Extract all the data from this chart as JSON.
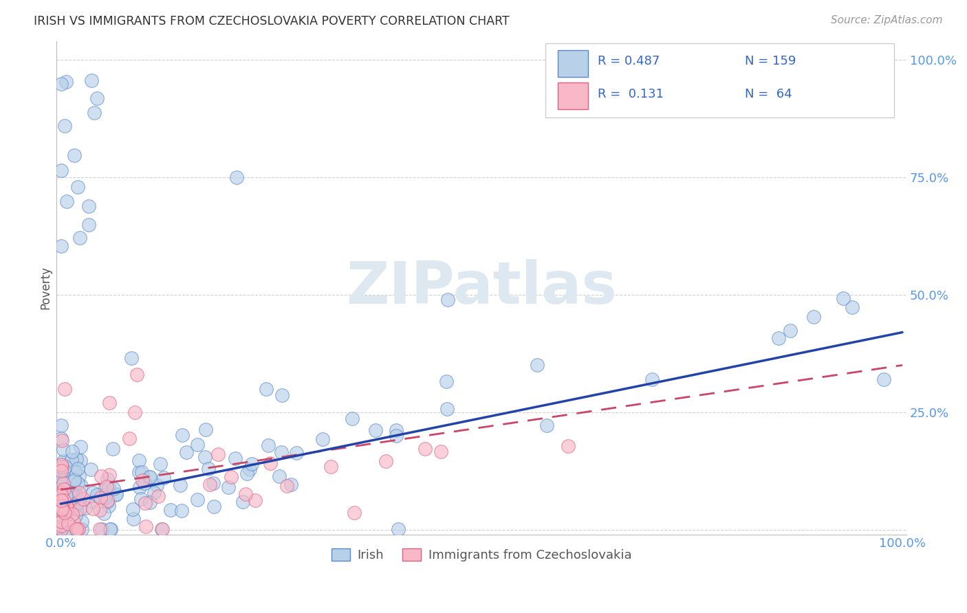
{
  "title": "IRISH VS IMMIGRANTS FROM CZECHOSLOVAKIA POVERTY CORRELATION CHART",
  "source": "Source: ZipAtlas.com",
  "ylabel": "Poverty",
  "legend_irish_r": "0.487",
  "legend_irish_n": "159",
  "legend_czech_r": "0.131",
  "legend_czech_n": "64",
  "irish_fill_color": "#b8d0e8",
  "irish_edge_color": "#5588cc",
  "czech_fill_color": "#f8b8c8",
  "czech_edge_color": "#e06080",
  "irish_line_color": "#2244aa",
  "czech_line_color": "#cc4466",
  "legend_color": "#3366cc",
  "watermark_color": "#dde8f0",
  "background_color": "#ffffff",
  "grid_color": "#cccccc",
  "title_color": "#333333",
  "axis_tick_color": "#5599ee",
  "ylabel_color": "#555555",
  "source_color": "#999999",
  "bottom_label_color": "#555555"
}
